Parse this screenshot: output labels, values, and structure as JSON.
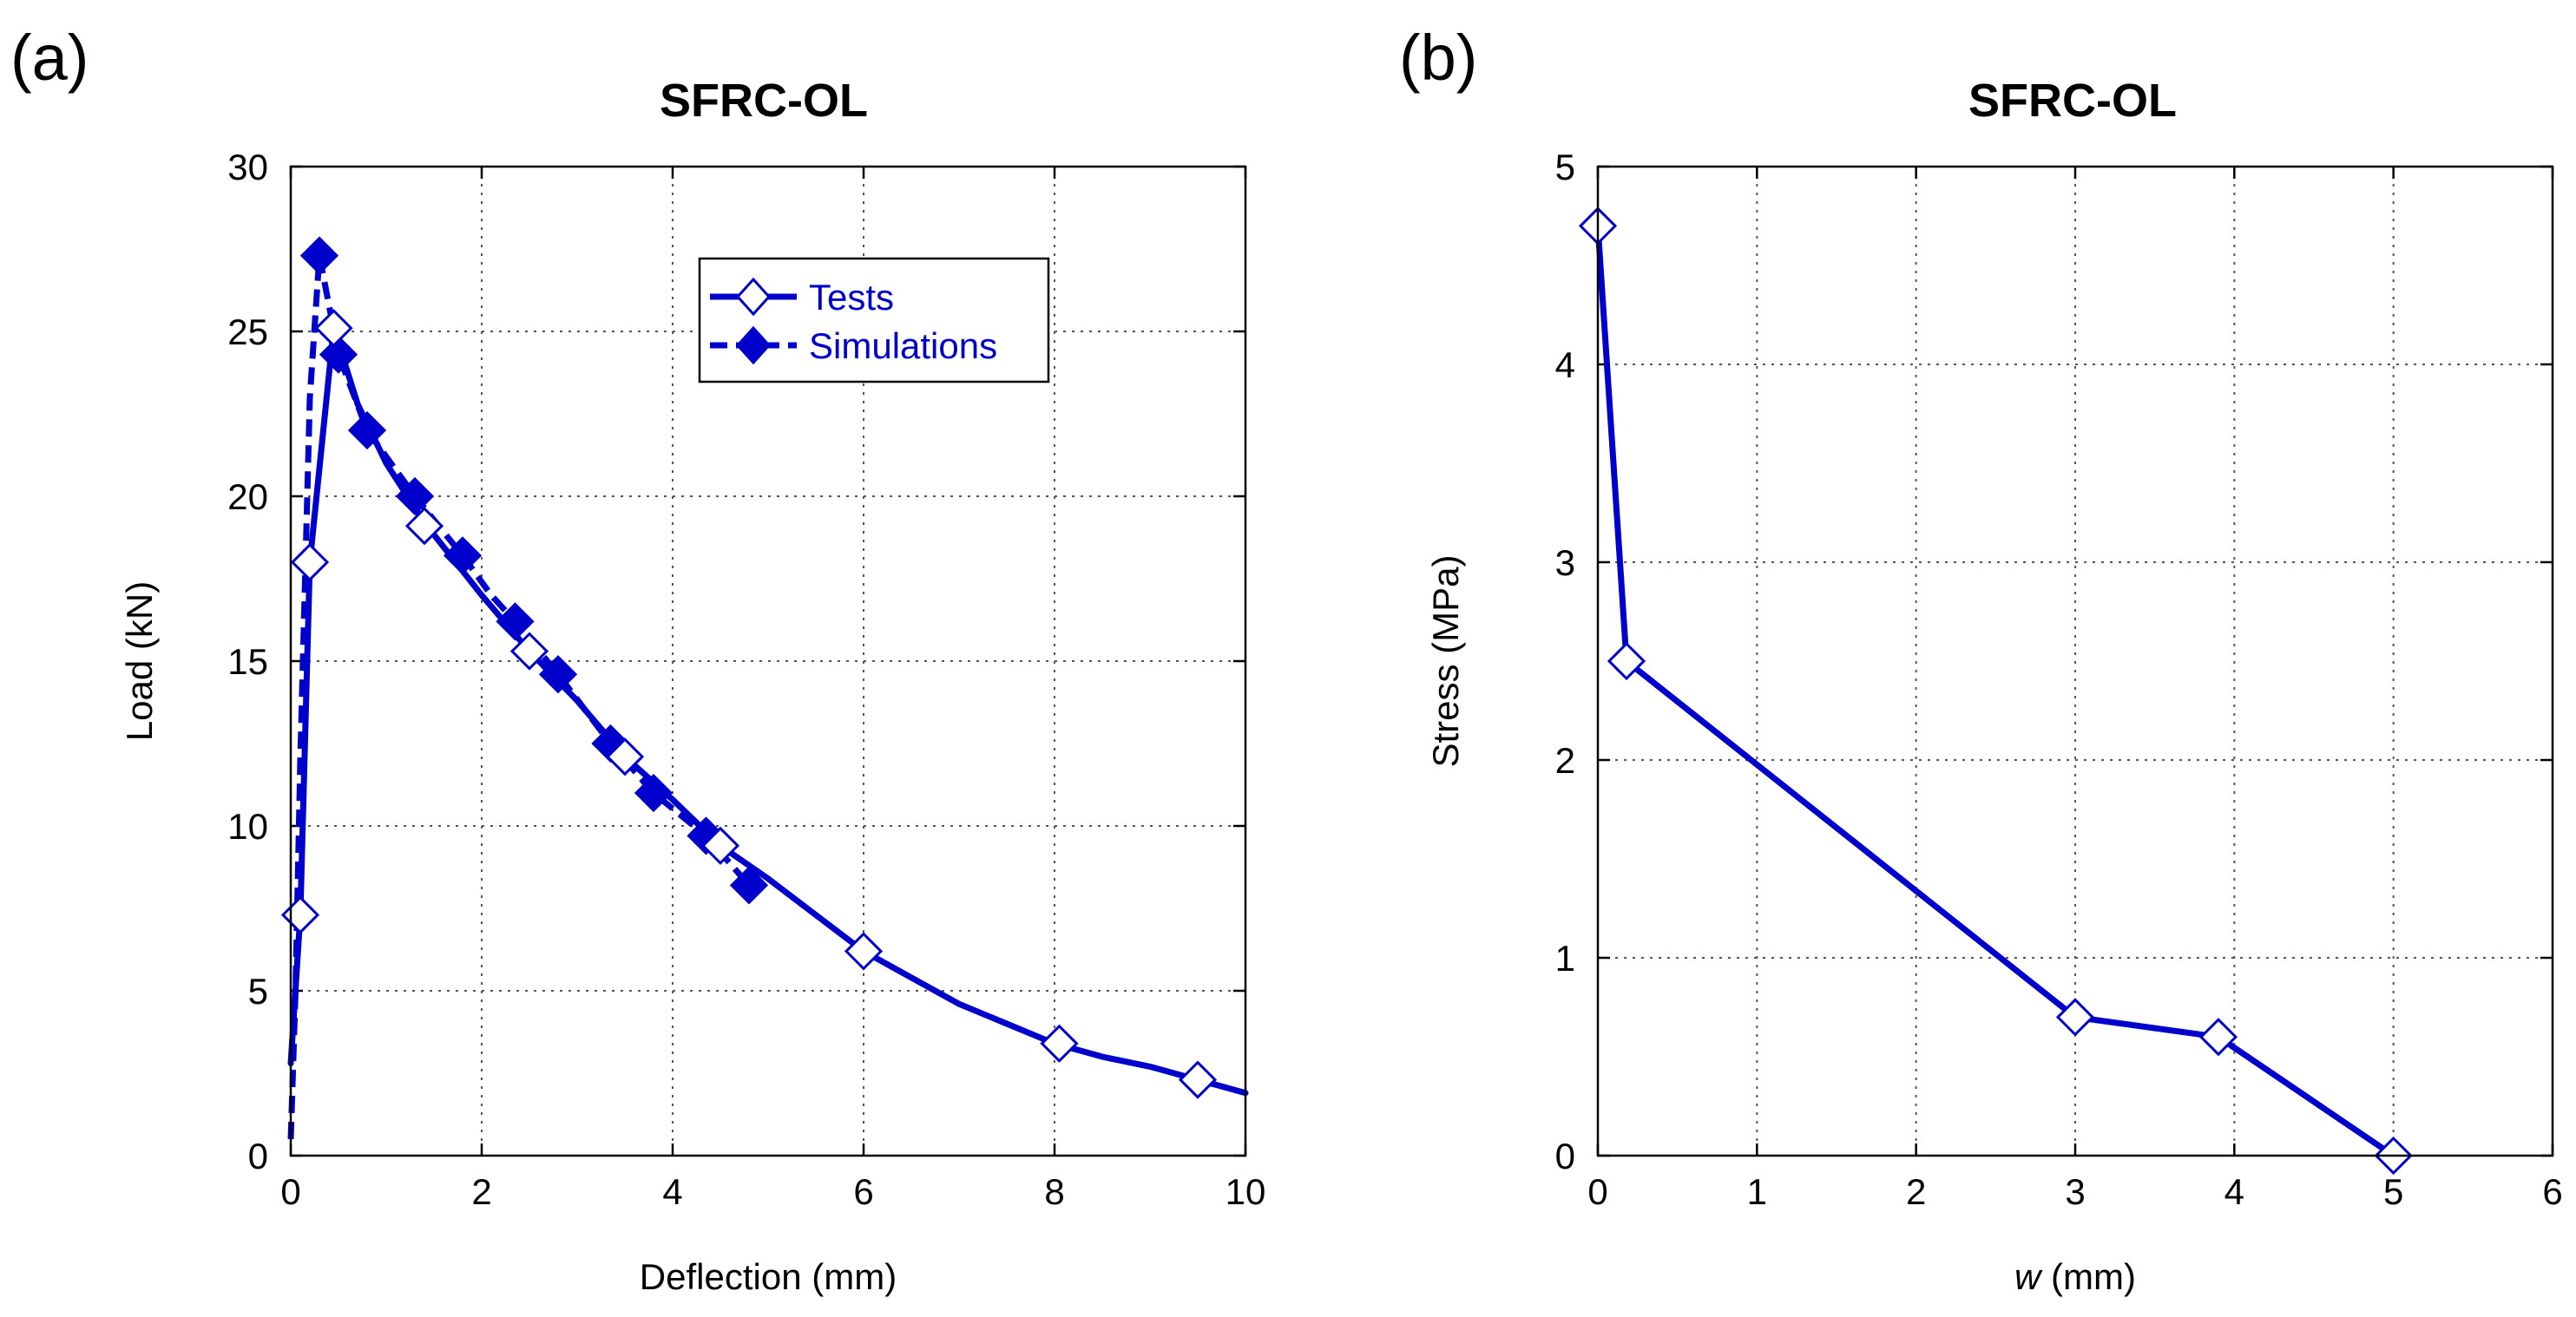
{
  "colors": {
    "series": "#0000cc",
    "marker_open_fill": "#ffffff"
  },
  "panels": [
    {
      "label": "(a)"
    },
    {
      "label": "(b)"
    }
  ],
  "legend": {
    "entries": [
      "Tests",
      "Simulations"
    ]
  },
  "chart_data": [
    {
      "type": "line",
      "title": "SFRC-OL",
      "xlabel": "Deflection (mm)",
      "ylabel": "Load (kN)",
      "xlim": [
        0,
        10
      ],
      "ylim": [
        0,
        30
      ],
      "xticks": [
        0,
        2,
        4,
        6,
        8,
        10
      ],
      "yticks": [
        0,
        5,
        10,
        15,
        20,
        25,
        30
      ],
      "xtick_labels": [
        "0",
        "2",
        "4",
        "6",
        "8",
        "10"
      ],
      "ytick_labels": [
        "0",
        "5",
        "10",
        "15",
        "20",
        "25",
        "30"
      ],
      "grid": true,
      "legend_position": "top-right",
      "series": [
        {
          "name": "Tests",
          "line": "solid",
          "marker": "open-diamond",
          "x": [
            0.0,
            0.1,
            0.2,
            0.45,
            0.7,
            1.0,
            1.4,
            2.0,
            2.5,
            3.0,
            3.5,
            4.0,
            4.5,
            5.0,
            5.5,
            6.0,
            6.5,
            7.0,
            7.5,
            8.0,
            8.5,
            9.0,
            9.5,
            10.0
          ],
          "y": [
            2.8,
            7.3,
            18.0,
            25.1,
            22.8,
            21.0,
            19.2,
            17.0,
            15.3,
            13.8,
            12.1,
            10.8,
            9.4,
            8.4,
            7.3,
            6.2,
            5.4,
            4.6,
            4.0,
            3.4,
            3.0,
            2.7,
            2.3,
            1.9
          ],
          "marker_x": [
            0.1,
            0.2,
            0.45,
            1.4,
            2.5,
            3.5,
            4.5,
            6.0,
            8.05,
            9.5
          ],
          "marker_y": [
            7.3,
            18.0,
            25.1,
            19.1,
            15.3,
            12.1,
            9.4,
            6.2,
            3.4,
            2.3
          ]
        },
        {
          "name": "Simulations",
          "line": "dashed",
          "marker": "filled-diamond",
          "x": [
            0.0,
            0.05,
            0.1,
            0.2,
            0.3,
            0.5,
            0.8,
            1.3,
            1.8,
            2.1,
            2.35,
            2.8,
            3.35,
            3.8,
            4.35,
            4.8
          ],
          "y": [
            0.5,
            5.0,
            12.0,
            23.0,
            27.3,
            24.3,
            22.0,
            20.0,
            18.2,
            17.0,
            16.2,
            14.6,
            12.5,
            11.0,
            9.7,
            8.2
          ],
          "marker_x": [
            0.3,
            0.5,
            0.8,
            1.3,
            1.8,
            2.35,
            2.8,
            3.35,
            3.8,
            4.35,
            4.8
          ],
          "marker_y": [
            27.3,
            24.3,
            22.0,
            20.0,
            18.2,
            16.2,
            14.6,
            12.5,
            11.0,
            9.7,
            8.2
          ]
        }
      ]
    },
    {
      "type": "line",
      "title": "SFRC-OL",
      "xlabel_italic": "w",
      "xlabel_rest": " (mm)",
      "ylabel": "Stress (MPa)",
      "xlim": [
        0,
        6
      ],
      "ylim": [
        0,
        5
      ],
      "xticks": [
        0,
        1,
        2,
        3,
        4,
        5,
        6
      ],
      "yticks": [
        0,
        1,
        2,
        3,
        4,
        5
      ],
      "xtick_labels": [
        "0",
        "1",
        "2",
        "3",
        "4",
        "5",
        "6"
      ],
      "ytick_labels": [
        "0",
        "1",
        "2",
        "3",
        "4",
        "5"
      ],
      "grid": true,
      "series": [
        {
          "name": "Tests",
          "line": "solid",
          "marker": "open-diamond",
          "x": [
            0.0,
            0.18,
            3.0,
            3.9,
            5.0
          ],
          "y": [
            4.7,
            2.5,
            0.7,
            0.6,
            0.0
          ],
          "marker_x": [
            0.0,
            0.18,
            3.0,
            3.9,
            5.0
          ],
          "marker_y": [
            4.7,
            2.5,
            0.7,
            0.6,
            0.0
          ]
        }
      ]
    }
  ]
}
